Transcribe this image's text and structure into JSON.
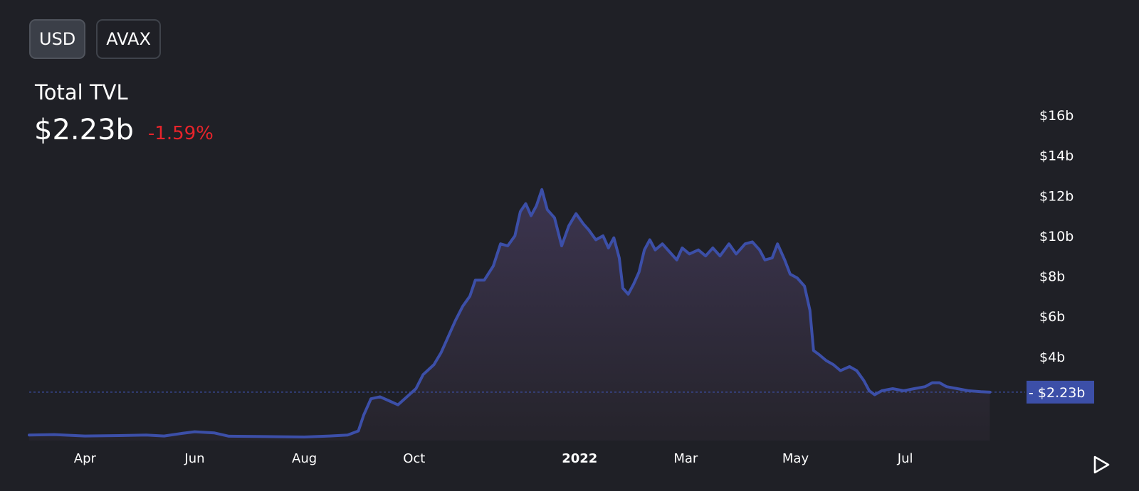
{
  "currency_toggle": {
    "options": [
      "USD",
      "AVAX"
    ],
    "selected": "USD"
  },
  "summary": {
    "title": "Total TVL",
    "value": "$2.23b",
    "change": "-1.59%"
  },
  "colors": {
    "background": "#1f2026",
    "line": "#3c4fa8",
    "change_negative": "#e8242b",
    "current_label_bg": "#3c4fa8"
  },
  "chart_data": {
    "type": "area",
    "xaxis": {
      "range": [
        "2021-03-01",
        "2022-08-20"
      ],
      "ticks": [
        {
          "label": "Apr",
          "date": "2021-04-01",
          "bold": false
        },
        {
          "label": "Jun",
          "date": "2021-06-01",
          "bold": false
        },
        {
          "label": "Aug",
          "date": "2021-08-01",
          "bold": false
        },
        {
          "label": "Oct",
          "date": "2021-10-01",
          "bold": false
        },
        {
          "label": "2022",
          "date": "2022-01-01",
          "bold": true
        },
        {
          "label": "Mar",
          "date": "2022-03-01",
          "bold": false
        },
        {
          "label": "May",
          "date": "2022-05-01",
          "bold": false
        },
        {
          "label": "Jul",
          "date": "2022-07-01",
          "bold": false
        }
      ]
    },
    "yaxis": {
      "unit": "billion USD",
      "range": [
        0,
        16
      ],
      "ticks": [
        {
          "label": "$4b",
          "value": 4
        },
        {
          "label": "$6b",
          "value": 6
        },
        {
          "label": "$8b",
          "value": 8
        },
        {
          "label": "$10b",
          "value": 10
        },
        {
          "label": "$12b",
          "value": 12
        },
        {
          "label": "$14b",
          "value": 14
        },
        {
          "label": "$16b",
          "value": 16
        }
      ]
    },
    "current": {
      "value": 2.23,
      "label": "$2.23b"
    },
    "points": [
      [
        "2021-03-01",
        0.1
      ],
      [
        "2021-03-15",
        0.12
      ],
      [
        "2021-04-01",
        0.05
      ],
      [
        "2021-04-20",
        0.07
      ],
      [
        "2021-05-05",
        0.1
      ],
      [
        "2021-05-15",
        0.05
      ],
      [
        "2021-05-25",
        0.18
      ],
      [
        "2021-06-01",
        0.26
      ],
      [
        "2021-06-12",
        0.2
      ],
      [
        "2021-06-20",
        0.04
      ],
      [
        "2021-07-10",
        0.02
      ],
      [
        "2021-08-01",
        0.0
      ],
      [
        "2021-08-15",
        0.05
      ],
      [
        "2021-08-25",
        0.1
      ],
      [
        "2021-08-31",
        0.3
      ],
      [
        "2021-09-03",
        1.1
      ],
      [
        "2021-09-07",
        1.9
      ],
      [
        "2021-09-12",
        2.0
      ],
      [
        "2021-09-17",
        1.8
      ],
      [
        "2021-09-22",
        1.6
      ],
      [
        "2021-09-27",
        2.0
      ],
      [
        "2021-10-02",
        2.4
      ],
      [
        "2021-10-06",
        3.1
      ],
      [
        "2021-10-12",
        3.6
      ],
      [
        "2021-10-16",
        4.2
      ],
      [
        "2021-10-20",
        5.0
      ],
      [
        "2021-10-24",
        5.8
      ],
      [
        "2021-10-28",
        6.5
      ],
      [
        "2021-11-01",
        7.0
      ],
      [
        "2021-11-04",
        7.8
      ],
      [
        "2021-11-09",
        7.8
      ],
      [
        "2021-11-14",
        8.5
      ],
      [
        "2021-11-18",
        9.6
      ],
      [
        "2021-11-22",
        9.5
      ],
      [
        "2021-11-26",
        10.0
      ],
      [
        "2021-11-29",
        11.2
      ],
      [
        "2021-12-02",
        11.6
      ],
      [
        "2021-12-05",
        11.0
      ],
      [
        "2021-12-08",
        11.5
      ],
      [
        "2021-12-11",
        12.3
      ],
      [
        "2021-12-14",
        11.3
      ],
      [
        "2021-12-18",
        10.9
      ],
      [
        "2021-12-22",
        9.5
      ],
      [
        "2021-12-26",
        10.5
      ],
      [
        "2021-12-30",
        11.1
      ],
      [
        "2022-01-03",
        10.6
      ],
      [
        "2022-01-06",
        10.3
      ],
      [
        "2022-01-10",
        9.8
      ],
      [
        "2022-01-14",
        10.0
      ],
      [
        "2022-01-17",
        9.4
      ],
      [
        "2022-01-20",
        9.9
      ],
      [
        "2022-01-23",
        8.9
      ],
      [
        "2022-01-25",
        7.4
      ],
      [
        "2022-01-28",
        7.1
      ],
      [
        "2022-01-31",
        7.6
      ],
      [
        "2022-02-03",
        8.2
      ],
      [
        "2022-02-06",
        9.3
      ],
      [
        "2022-02-09",
        9.8
      ],
      [
        "2022-02-12",
        9.3
      ],
      [
        "2022-02-16",
        9.6
      ],
      [
        "2022-02-20",
        9.2
      ],
      [
        "2022-02-24",
        8.8
      ],
      [
        "2022-02-27",
        9.4
      ],
      [
        "2022-03-03",
        9.1
      ],
      [
        "2022-03-08",
        9.3
      ],
      [
        "2022-03-12",
        9.0
      ],
      [
        "2022-03-16",
        9.4
      ],
      [
        "2022-03-20",
        9.0
      ],
      [
        "2022-03-25",
        9.6
      ],
      [
        "2022-03-29",
        9.1
      ],
      [
        "2022-04-03",
        9.6
      ],
      [
        "2022-04-07",
        9.7
      ],
      [
        "2022-04-11",
        9.3
      ],
      [
        "2022-04-14",
        8.8
      ],
      [
        "2022-04-18",
        8.9
      ],
      [
        "2022-04-21",
        9.6
      ],
      [
        "2022-04-25",
        8.8
      ],
      [
        "2022-04-28",
        8.1
      ],
      [
        "2022-05-02",
        7.9
      ],
      [
        "2022-05-06",
        7.5
      ],
      [
        "2022-05-09",
        6.3
      ],
      [
        "2022-05-11",
        4.3
      ],
      [
        "2022-05-14",
        4.1
      ],
      [
        "2022-05-18",
        3.8
      ],
      [
        "2022-05-22",
        3.6
      ],
      [
        "2022-05-26",
        3.3
      ],
      [
        "2022-05-31",
        3.5
      ],
      [
        "2022-06-04",
        3.3
      ],
      [
        "2022-06-08",
        2.8
      ],
      [
        "2022-06-11",
        2.3
      ],
      [
        "2022-06-14",
        2.1
      ],
      [
        "2022-06-18",
        2.3
      ],
      [
        "2022-06-24",
        2.4
      ],
      [
        "2022-06-30",
        2.3
      ],
      [
        "2022-07-06",
        2.4
      ],
      [
        "2022-07-12",
        2.5
      ],
      [
        "2022-07-16",
        2.7
      ],
      [
        "2022-07-20",
        2.7
      ],
      [
        "2022-07-24",
        2.5
      ],
      [
        "2022-07-30",
        2.4
      ],
      [
        "2022-08-05",
        2.3
      ],
      [
        "2022-08-12",
        2.25
      ],
      [
        "2022-08-17",
        2.23
      ]
    ]
  }
}
